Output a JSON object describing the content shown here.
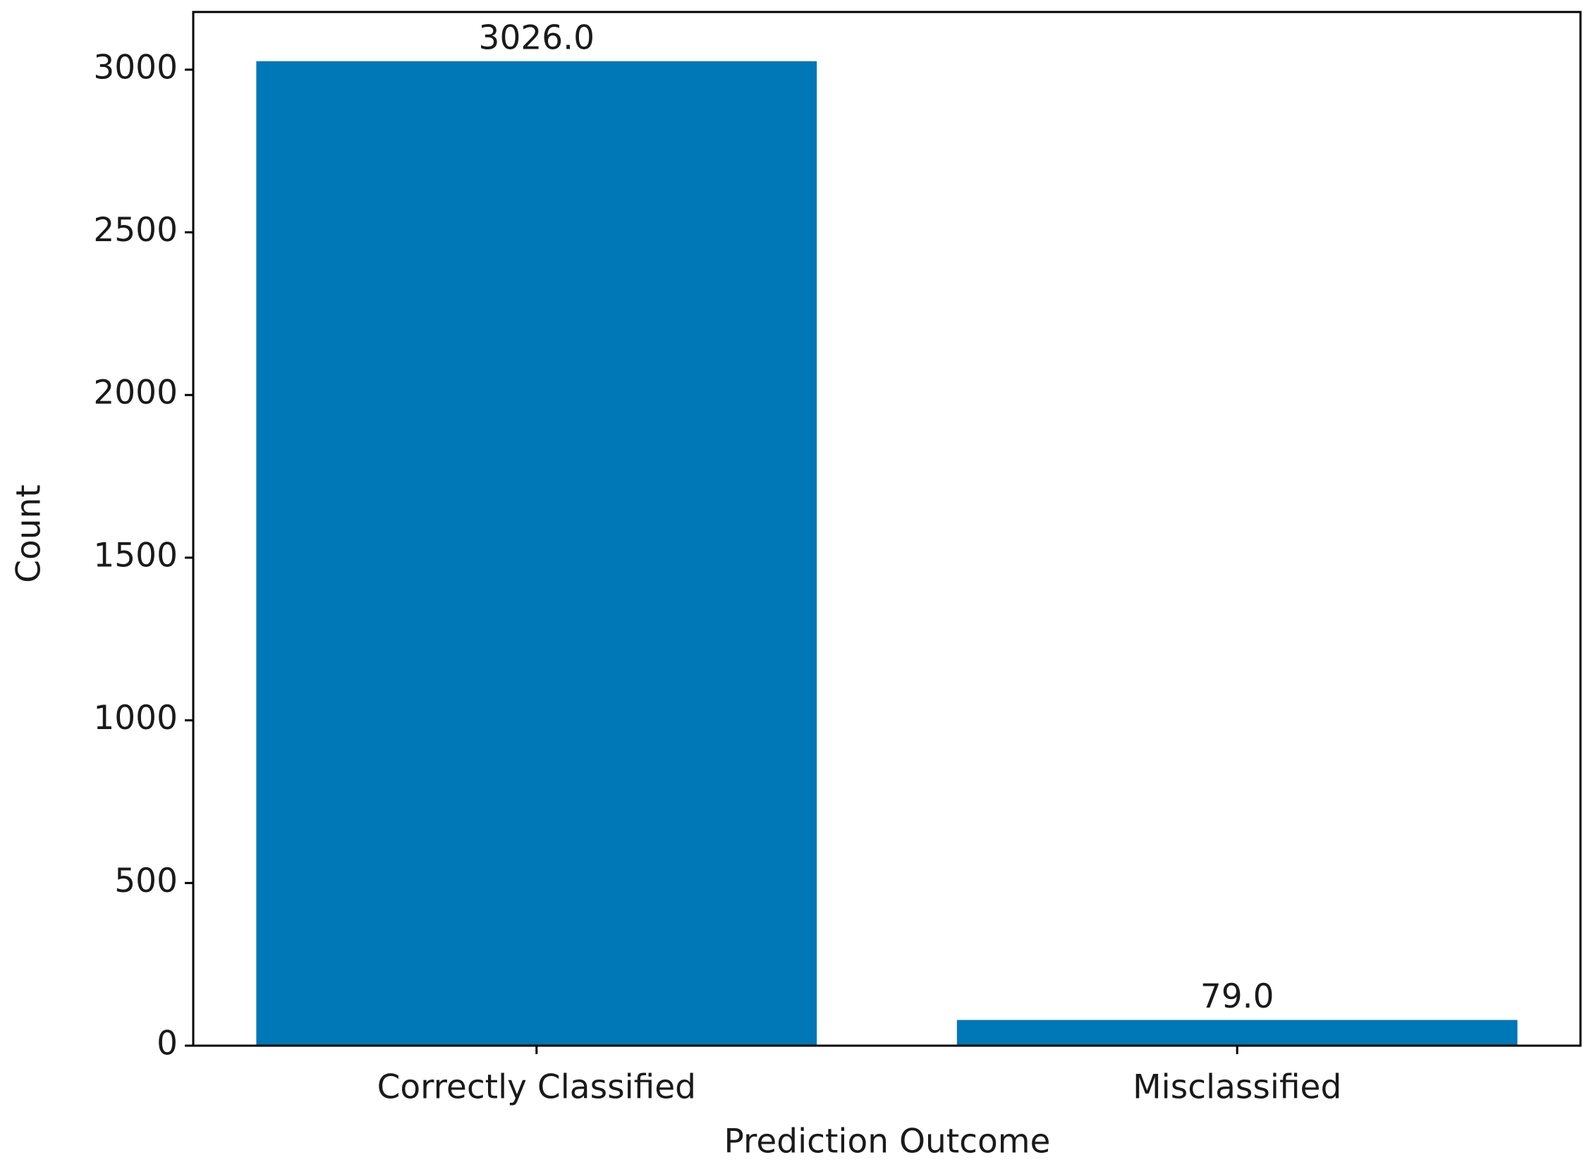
{
  "chart_data": {
    "type": "bar",
    "x_label": "Prediction Outcome",
    "y_label": "Count",
    "categories": [
      "Correctly Classified",
      "Misclassified"
    ],
    "values": [
      3026,
      79
    ],
    "value_labels": [
      "3026.0",
      "79.0"
    ],
    "color": "#0077b6",
    "ylim": [
      0,
      3177.3
    ],
    "yticks": [
      0,
      500,
      1000,
      1500,
      2000,
      2500,
      3000
    ]
  }
}
